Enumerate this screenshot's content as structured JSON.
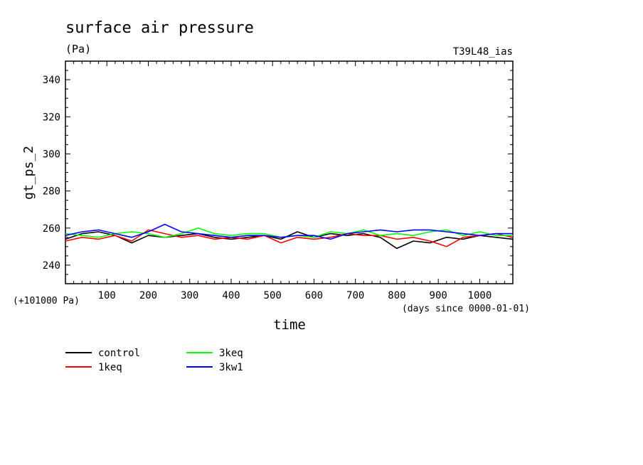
{
  "chart_data": {
    "type": "line",
    "title": "surface air pressure",
    "units": "(Pa)",
    "label_right": "T39L48_ias",
    "offset_note": "(+101000 Pa)",
    "xlabel": "time",
    "xunits": "(days since 0000-01-01)",
    "ylabel": "gt_ps_2",
    "xlim": [
      0,
      1080
    ],
    "ylim": [
      230,
      350
    ],
    "x_ticks": [
      100,
      200,
      300,
      400,
      500,
      600,
      700,
      800,
      900,
      1000
    ],
    "x_tick_labels": [
      "100",
      "200",
      "300",
      "400",
      "500",
      "600",
      "700",
      "800",
      "900",
      "1000"
    ],
    "y_ticks": [
      240,
      260,
      280,
      300,
      320,
      340
    ],
    "y_tick_labels": [
      "240",
      "260",
      "280",
      "300",
      "320",
      "340"
    ],
    "grid": false,
    "legend_position": "below",
    "x": [
      0,
      40,
      80,
      120,
      160,
      200,
      240,
      280,
      320,
      360,
      400,
      440,
      480,
      520,
      560,
      600,
      640,
      680,
      720,
      760,
      800,
      840,
      880,
      920,
      960,
      1000,
      1040,
      1080
    ],
    "series": [
      {
        "name": "control",
        "color": "#000000",
        "values": [
          254,
          257,
          258,
          256,
          252,
          256,
          255,
          256,
          257,
          255,
          254,
          255,
          256,
          254,
          258,
          255,
          257,
          256,
          257,
          255,
          249,
          253,
          252,
          255,
          254,
          256,
          255,
          254
        ]
      },
      {
        "name": "1keq",
        "color": "#ff0000",
        "values": [
          253,
          255,
          254,
          256,
          253,
          259,
          257,
          255,
          256,
          254,
          255,
          254,
          256,
          252,
          255,
          254,
          255,
          257,
          256,
          256,
          254,
          255,
          253,
          250,
          255,
          256,
          257,
          255
        ]
      },
      {
        "name": "3keq",
        "color": "#00ff00",
        "values": [
          257,
          256,
          255,
          257,
          258,
          257,
          255,
          257,
          260,
          257,
          256,
          257,
          257,
          255,
          256,
          255,
          258,
          257,
          259,
          256,
          257,
          256,
          258,
          259,
          256,
          258,
          256,
          256
        ]
      },
      {
        "name": "3kw1",
        "color": "#0000ff",
        "values": [
          256,
          258,
          259,
          257,
          255,
          258,
          262,
          258,
          257,
          256,
          255,
          256,
          256,
          255,
          256,
          256,
          254,
          257,
          258,
          259,
          258,
          259,
          259,
          258,
          257,
          256,
          257,
          257
        ]
      }
    ]
  }
}
